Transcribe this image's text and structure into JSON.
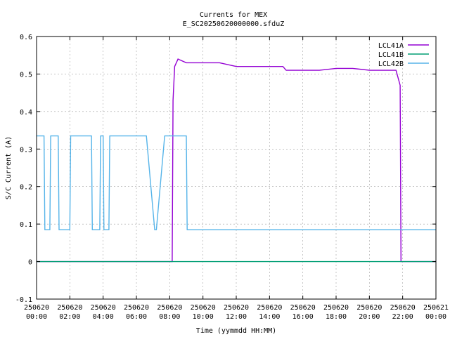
{
  "chart_data": {
    "type": "line",
    "title": "Currents for MEX",
    "subtitle": "E_SC20250620000000.sfduZ",
    "xlabel": "Time (yymmdd HH:MM)",
    "ylabel": "S/C Current (A)",
    "xlim_hours": [
      0,
      24
    ],
    "ylim": [
      -0.1,
      0.6
    ],
    "y_ticks": [
      -0.1,
      0,
      0.1,
      0.2,
      0.3,
      0.4,
      0.5,
      0.6
    ],
    "y_tick_labels": [
      "-0.1",
      "0",
      "0.1",
      "0.2",
      "0.3",
      "0.4",
      "0.5",
      "0.6"
    ],
    "x_tick_hours": [
      0,
      2,
      4,
      6,
      8,
      10,
      12,
      14,
      16,
      18,
      20,
      22,
      24
    ],
    "x_tick_labels": [
      [
        "250620",
        "00:00"
      ],
      [
        "250620",
        "02:00"
      ],
      [
        "250620",
        "04:00"
      ],
      [
        "250620",
        "06:00"
      ],
      [
        "250620",
        "08:00"
      ],
      [
        "250620",
        "10:00"
      ],
      [
        "250620",
        "12:00"
      ],
      [
        "250620",
        "14:00"
      ],
      [
        "250620",
        "16:00"
      ],
      [
        "250620",
        "18:00"
      ],
      [
        "250620",
        "20:00"
      ],
      [
        "250620",
        "22:00"
      ],
      [
        "250621",
        "00:00"
      ]
    ],
    "grid": true,
    "legend_position": "top-right",
    "series": [
      {
        "name": "LCL41A",
        "color": "#9400d3",
        "x": [
          0,
          8.15,
          8.2,
          8.3,
          8.5,
          9.0,
          10.0,
          11.0,
          12.0,
          13.0,
          14.0,
          14.8,
          15.0,
          16.0,
          17.0,
          18.0,
          19.0,
          20.0,
          21.0,
          21.6,
          21.85,
          21.9,
          21.95,
          24
        ],
        "y": [
          0,
          0,
          0.43,
          0.52,
          0.54,
          0.53,
          0.53,
          0.53,
          0.52,
          0.52,
          0.52,
          0.52,
          0.51,
          0.51,
          0.51,
          0.515,
          0.515,
          0.51,
          0.51,
          0.51,
          0.47,
          0.0,
          0,
          0
        ]
      },
      {
        "name": "LCL41B",
        "color": "#009e73",
        "x": [
          0,
          24
        ],
        "y": [
          0,
          0
        ]
      },
      {
        "name": "LCL42B",
        "color": "#56b4e9",
        "x": [
          0,
          0.1,
          0.45,
          0.5,
          0.8,
          0.85,
          1.3,
          1.35,
          2.0,
          2.05,
          3.3,
          3.35,
          3.8,
          3.85,
          4.0,
          4.05,
          4.35,
          4.4,
          6.55,
          6.6,
          7.1,
          7.2,
          7.7,
          8.1,
          8.15,
          8.65,
          8.7,
          9.0,
          9.05,
          24
        ],
        "y": [
          0.335,
          0.335,
          0.335,
          0.085,
          0.085,
          0.335,
          0.335,
          0.085,
          0.085,
          0.335,
          0.335,
          0.085,
          0.085,
          0.335,
          0.335,
          0.085,
          0.085,
          0.335,
          0.335,
          0.335,
          0.085,
          0.085,
          0.335,
          0.335,
          0.335,
          0.335,
          0.335,
          0.335,
          0.085,
          0.085
        ]
      }
    ]
  }
}
